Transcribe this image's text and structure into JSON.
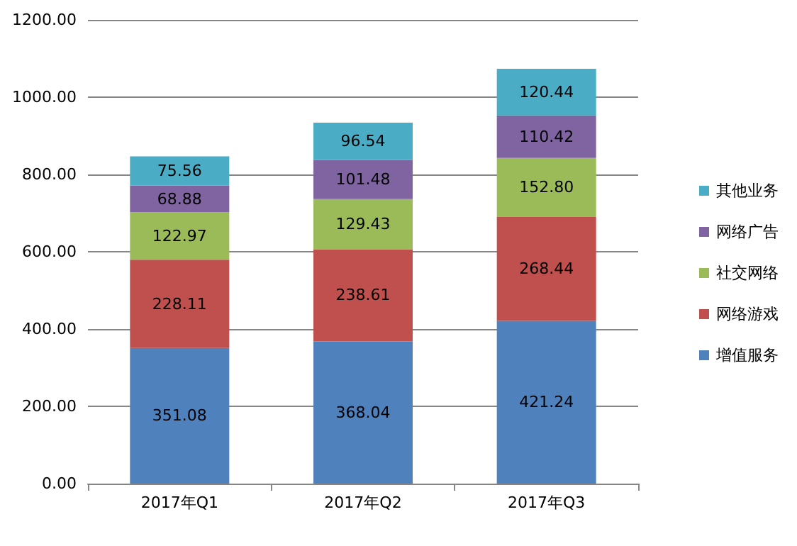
{
  "chart_data": {
    "type": "bar",
    "stacked": true,
    "categories": [
      "2017年Q1",
      "2017年Q2",
      "2017年Q3"
    ],
    "series": [
      {
        "name": "增值服务",
        "color": "#4f81bd",
        "values": [
          351.08,
          368.04,
          421.24
        ],
        "value_labels": [
          "351.08",
          "368.04",
          "421.24"
        ]
      },
      {
        "name": "网络游戏",
        "color": "#c0504d",
        "values": [
          228.11,
          238.61,
          268.44
        ],
        "value_labels": [
          "228.11",
          "238.61",
          "268.44"
        ]
      },
      {
        "name": "社交网络",
        "color": "#9bbb59",
        "values": [
          122.97,
          129.43,
          152.8
        ],
        "value_labels": [
          "122.97",
          "129.43",
          "152.80"
        ]
      },
      {
        "name": "网络广告",
        "color": "#8064a2",
        "values": [
          68.88,
          101.48,
          110.42
        ],
        "value_labels": [
          "68.88",
          "101.48",
          "110.42"
        ]
      },
      {
        "name": "其他业务",
        "color": "#4bacc6",
        "values": [
          75.56,
          96.54,
          120.44
        ],
        "value_labels": [
          "75.56",
          "96.54",
          "120.44"
        ]
      }
    ],
    "ylim": [
      0,
      1200
    ],
    "yticks": [
      {
        "value": 0,
        "label": "0.00"
      },
      {
        "value": 200,
        "label": "200.00"
      },
      {
        "value": 400,
        "label": "400.00"
      },
      {
        "value": 600,
        "label": "600.00"
      },
      {
        "value": 800,
        "label": "800.00"
      },
      {
        "value": 1000,
        "label": "1000.00"
      },
      {
        "value": 1200,
        "label": "1200.00"
      }
    ],
    "grid": "y",
    "legend": "right"
  }
}
